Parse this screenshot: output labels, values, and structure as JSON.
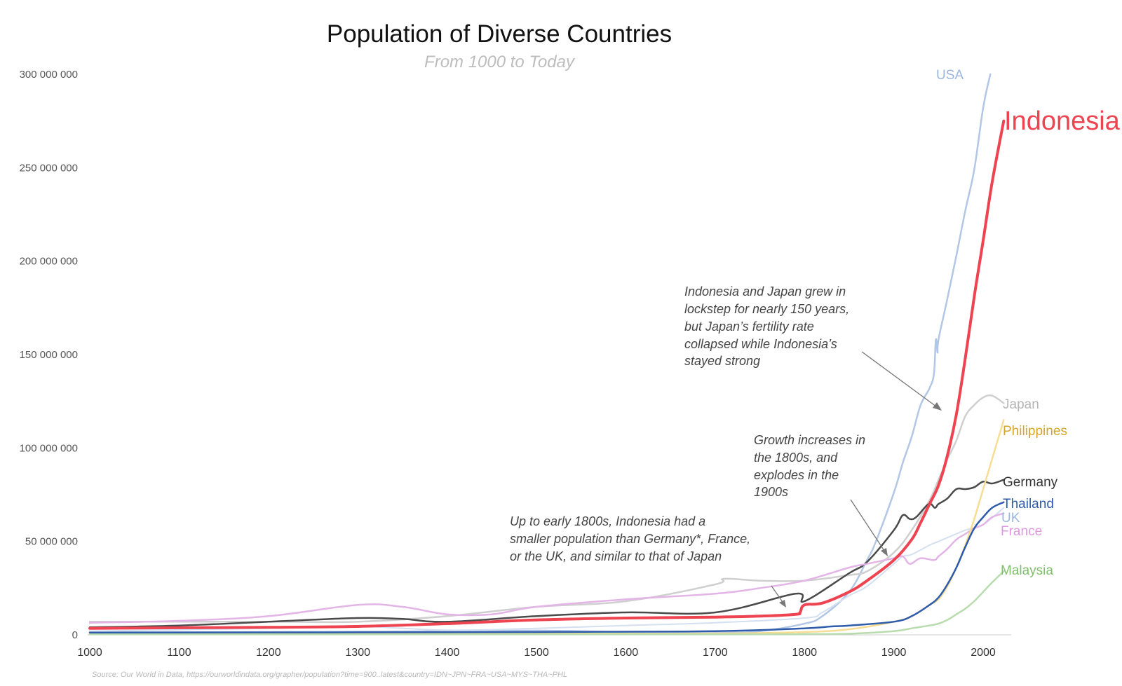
{
  "chart_data": {
    "type": "line",
    "title": "Population of Diverse Countries",
    "subtitle": "From 1000 to Today",
    "source": "Source: Our World in Data, https://ourworldindata.org/grapher/population?time=900..latest&country=IDN~JPN~FRA~USA~MYS~THA~PHL",
    "xlim": [
      1000,
      2023
    ],
    "ylim": [
      0,
      300000000
    ],
    "x_ticks": [
      1000,
      1100,
      1200,
      1300,
      1400,
      1500,
      1600,
      1700,
      1800,
      1900,
      2000
    ],
    "x_tick_labels": [
      "1000",
      "1100",
      "1200",
      "1300",
      "1400",
      "1500",
      "1600",
      "1700",
      "1800",
      "1900",
      "2000"
    ],
    "y_ticks": [
      0,
      50000000,
      100000000,
      150000000,
      200000000,
      250000000,
      300000000
    ],
    "y_tick_labels": [
      "0",
      "50 000 000",
      "100 000 000",
      "150 000 000",
      "200 000 000",
      "250 000 000",
      "300 000 000"
    ],
    "grid": false,
    "legend": "labels at line ends (right)",
    "series": [
      {
        "name": "USA",
        "color": "#b2c6e6",
        "width": 2.5,
        "points": [
          [
            1000,
            1300000
          ],
          [
            1200,
            1500000
          ],
          [
            1400,
            2000000
          ],
          [
            1500,
            2300000
          ],
          [
            1600,
            1500000
          ],
          [
            1700,
            1000000
          ],
          [
            1750,
            2000000
          ],
          [
            1800,
            6000000
          ],
          [
            1820,
            10000000
          ],
          [
            1850,
            23000000
          ],
          [
            1870,
            40000000
          ],
          [
            1880,
            50000000
          ],
          [
            1900,
            76000000
          ],
          [
            1910,
            92000000
          ],
          [
            1920,
            106000000
          ],
          [
            1930,
            123000000
          ],
          [
            1940,
            132000000
          ],
          [
            1945,
            140000000
          ],
          [
            1947,
            158000000
          ],
          [
            1949,
            151000000
          ],
          [
            1950,
            158000000
          ],
          [
            1960,
            180000000
          ],
          [
            1970,
            203000000
          ],
          [
            1980,
            227000000
          ],
          [
            1990,
            249000000
          ],
          [
            2000,
            282000000
          ],
          [
            2008,
            300000000
          ]
        ]
      },
      {
        "name": "Japan",
        "color": "#cfcfcf",
        "width": 2.5,
        "points": [
          [
            1000,
            7000000
          ],
          [
            1200,
            7000000
          ],
          [
            1300,
            7000000
          ],
          [
            1400,
            10000000
          ],
          [
            1500,
            15000000
          ],
          [
            1600,
            18000000
          ],
          [
            1700,
            27000000
          ],
          [
            1710,
            30000000
          ],
          [
            1750,
            29000000
          ],
          [
            1800,
            29000000
          ],
          [
            1850,
            32000000
          ],
          [
            1870,
            34000000
          ],
          [
            1900,
            44000000
          ],
          [
            1920,
            56000000
          ],
          [
            1940,
            72000000
          ],
          [
            1950,
            83000000
          ],
          [
            1960,
            94000000
          ],
          [
            1970,
            104000000
          ],
          [
            1980,
            117000000
          ],
          [
            1990,
            123000000
          ],
          [
            2000,
            127000000
          ],
          [
            2010,
            128000000
          ],
          [
            2023,
            124000000
          ]
        ]
      },
      {
        "name": "Germany",
        "color": "#4a4a4a",
        "width": 2.5,
        "points": [
          [
            1000,
            4000000
          ],
          [
            1100,
            5000000
          ],
          [
            1200,
            7000000
          ],
          [
            1300,
            9000000
          ],
          [
            1350,
            8500000
          ],
          [
            1400,
            7000000
          ],
          [
            1500,
            10000000
          ],
          [
            1600,
            12000000
          ],
          [
            1700,
            12000000
          ],
          [
            1790,
            22000000
          ],
          [
            1800,
            18000000
          ],
          [
            1850,
            33000000
          ],
          [
            1870,
            39000000
          ],
          [
            1900,
            56000000
          ],
          [
            1910,
            64000000
          ],
          [
            1918,
            62000000
          ],
          [
            1925,
            63000000
          ],
          [
            1939,
            70000000
          ],
          [
            1946,
            68000000
          ],
          [
            1950,
            70000000
          ],
          [
            1960,
            73000000
          ],
          [
            1970,
            78000000
          ],
          [
            1980,
            78000000
          ],
          [
            1990,
            79000000
          ],
          [
            2000,
            82000000
          ],
          [
            2010,
            81000000
          ],
          [
            2023,
            83000000
          ]
        ]
      },
      {
        "name": "UK",
        "color": "#d4dff0",
        "width": 2,
        "points": [
          [
            1000,
            2000000
          ],
          [
            1200,
            3500000
          ],
          [
            1300,
            4500000
          ],
          [
            1400,
            2500000
          ],
          [
            1500,
            3500000
          ],
          [
            1600,
            5000000
          ],
          [
            1700,
            6500000
          ],
          [
            1800,
            9000000
          ],
          [
            1820,
            12000000
          ],
          [
            1850,
            21000000
          ],
          [
            1870,
            26000000
          ],
          [
            1900,
            38000000
          ],
          [
            1910,
            42000000
          ],
          [
            1920,
            43000000
          ],
          [
            1940,
            48000000
          ],
          [
            1950,
            50000000
          ],
          [
            1960,
            52000000
          ],
          [
            1980,
            56000000
          ],
          [
            2000,
            59000000
          ],
          [
            2023,
            68000000
          ]
        ]
      },
      {
        "name": "France",
        "color": "#e3b5e6",
        "width": 2.5,
        "points": [
          [
            1000,
            6500000
          ],
          [
            1100,
            7500000
          ],
          [
            1200,
            10000000
          ],
          [
            1300,
            16000000
          ],
          [
            1350,
            15000000
          ],
          [
            1400,
            11000000
          ],
          [
            1450,
            11000000
          ],
          [
            1500,
            15000000
          ],
          [
            1600,
            19000000
          ],
          [
            1700,
            22000000
          ],
          [
            1750,
            25000000
          ],
          [
            1800,
            29000000
          ],
          [
            1850,
            36000000
          ],
          [
            1870,
            38000000
          ],
          [
            1900,
            41000000
          ],
          [
            1910,
            42000000
          ],
          [
            1918,
            38000000
          ],
          [
            1930,
            41000000
          ],
          [
            1945,
            40000000
          ],
          [
            1950,
            42000000
          ],
          [
            1960,
            46000000
          ],
          [
            1970,
            51000000
          ],
          [
            1980,
            54000000
          ],
          [
            1990,
            57000000
          ],
          [
            2000,
            59000000
          ],
          [
            2010,
            63000000
          ],
          [
            2023,
            65000000
          ]
        ]
      },
      {
        "name": "Philippines",
        "color": "#f7dd93",
        "width": 2.5,
        "points": [
          [
            1000,
            700000
          ],
          [
            1500,
            700000
          ],
          [
            1700,
            700000
          ],
          [
            1800,
            1500000
          ],
          [
            1850,
            3000000
          ],
          [
            1900,
            7000000
          ],
          [
            1920,
            10000000
          ],
          [
            1940,
            16000000
          ],
          [
            1950,
            19000000
          ],
          [
            1960,
            26000000
          ],
          [
            1970,
            36000000
          ],
          [
            1980,
            48000000
          ],
          [
            1990,
            62000000
          ],
          [
            2000,
            78000000
          ],
          [
            2010,
            94000000
          ],
          [
            2023,
            115000000
          ]
        ]
      },
      {
        "name": "Thailand",
        "color": "#2e5cab",
        "width": 2.5,
        "points": [
          [
            1000,
            1200000
          ],
          [
            1500,
            1500000
          ],
          [
            1700,
            2000000
          ],
          [
            1800,
            3500000
          ],
          [
            1830,
            4500000
          ],
          [
            1850,
            5000000
          ],
          [
            1900,
            7000000
          ],
          [
            1920,
            10000000
          ],
          [
            1940,
            16000000
          ],
          [
            1950,
            20000000
          ],
          [
            1960,
            27000000
          ],
          [
            1970,
            36000000
          ],
          [
            1980,
            47000000
          ],
          [
            1990,
            57000000
          ],
          [
            2000,
            63000000
          ],
          [
            2010,
            68000000
          ],
          [
            2023,
            71000000
          ]
        ]
      },
      {
        "name": "Malaysia",
        "color": "#b8dcae",
        "width": 2.5,
        "points": [
          [
            1000,
            300000
          ],
          [
            1700,
            300000
          ],
          [
            1800,
            400000
          ],
          [
            1850,
            600000
          ],
          [
            1900,
            2000000
          ],
          [
            1920,
            3500000
          ],
          [
            1940,
            5000000
          ],
          [
            1950,
            6000000
          ],
          [
            1960,
            8000000
          ],
          [
            1970,
            11000000
          ],
          [
            1980,
            14000000
          ],
          [
            1990,
            18000000
          ],
          [
            2000,
            23000000
          ],
          [
            2010,
            28000000
          ],
          [
            2023,
            34000000
          ]
        ]
      },
      {
        "name": "Indonesia",
        "color": "#ee4350",
        "width": 4,
        "points": [
          [
            1000,
            3500000
          ],
          [
            1100,
            3800000
          ],
          [
            1200,
            4000000
          ],
          [
            1300,
            4500000
          ],
          [
            1400,
            6000000
          ],
          [
            1500,
            8000000
          ],
          [
            1600,
            9000000
          ],
          [
            1700,
            9500000
          ],
          [
            1750,
            10000000
          ],
          [
            1790,
            11000000
          ],
          [
            1795,
            12000000
          ],
          [
            1800,
            16000000
          ],
          [
            1820,
            17000000
          ],
          [
            1850,
            23000000
          ],
          [
            1870,
            29000000
          ],
          [
            1900,
            40000000
          ],
          [
            1920,
            51000000
          ],
          [
            1930,
            60000000
          ],
          [
            1940,
            70000000
          ],
          [
            1950,
            80000000
          ],
          [
            1960,
            96000000
          ],
          [
            1970,
            118000000
          ],
          [
            1980,
            148000000
          ],
          [
            1990,
            181000000
          ],
          [
            2000,
            211000000
          ],
          [
            2010,
            242000000
          ],
          [
            2023,
            275000000
          ]
        ]
      }
    ],
    "line_labels": [
      {
        "name": "USA",
        "color": "#9ab6e0"
      },
      {
        "name": "Indonesia",
        "color": "#ee4350"
      },
      {
        "name": "Japan",
        "color": "#b5b5b5"
      },
      {
        "name": "Philippines",
        "color": "#d4a62a"
      },
      {
        "name": "Germany",
        "color": "#333333"
      },
      {
        "name": "Thailand",
        "color": "#2e5cab"
      },
      {
        "name": "UK",
        "color": "#9ab6e0"
      },
      {
        "name": "France",
        "color": "#dd98df"
      },
      {
        "name": "Malaysia",
        "color": "#7fc06c"
      }
    ],
    "annotations": [
      {
        "lines": [
          "Indonesia and Japan grew in",
          "lockstep for nearly 150 years,",
          "but Japan’s fertility rate",
          "collapsed while Indonesia’s",
          "stayed strong"
        ],
        "points_to": [
          1970,
          120000000
        ]
      },
      {
        "lines": [
          "Growth increases in",
          "the 1800s, and",
          "explodes in the",
          "1900s"
        ],
        "points_to": [
          1910,
          41000000
        ]
      },
      {
        "lines": [
          "Up to early 1800s, Indonesia had a",
          "smaller population than Germany*, France,",
          "or the UK, and similar to that of Japan"
        ],
        "points_to": [
          1795,
          14000000
        ]
      }
    ]
  }
}
